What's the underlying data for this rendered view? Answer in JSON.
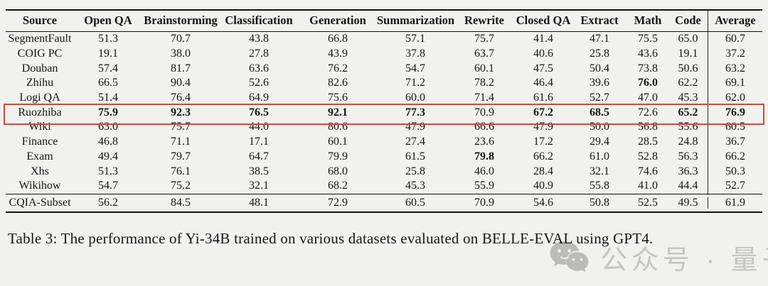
{
  "table": {
    "caption": "Table 3: The performance of Yi-34B trained on various datasets evaluated on BELLE-EVAL using GPT4.",
    "headers": [
      "Source",
      "Open QA",
      "Brainstorming",
      "Classification",
      "Generation",
      "Summarization",
      "Rewrite",
      "Closed QA",
      "Extract",
      "Math",
      "Code",
      "Average"
    ],
    "highlight_color": "#cb4a3d",
    "rows": [
      {
        "source": "SegmentFault",
        "values": [
          "51.3",
          "70.7",
          "43.8",
          "66.8",
          "57.1",
          "75.7",
          "41.4",
          "47.1",
          "75.5",
          "65.0",
          "60.7"
        ],
        "bold": [],
        "highlighted": false
      },
      {
        "source": "COIG PC",
        "values": [
          "19.1",
          "38.0",
          "27.8",
          "43.9",
          "37.8",
          "63.7",
          "40.6",
          "25.8",
          "43.6",
          "19.1",
          "37.2"
        ],
        "bold": [],
        "highlighted": false
      },
      {
        "source": "Douban",
        "values": [
          "57.4",
          "81.7",
          "63.6",
          "76.2",
          "54.7",
          "60.1",
          "47.5",
          "50.4",
          "73.8",
          "50.6",
          "63.2"
        ],
        "bold": [],
        "highlighted": false
      },
      {
        "source": "Zhihu",
        "values": [
          "66.5",
          "90.4",
          "52.6",
          "82.6",
          "71.2",
          "78.2",
          "46.4",
          "39.6",
          "76.0",
          "62.2",
          "69.1"
        ],
        "bold": [
          8
        ],
        "highlighted": false
      },
      {
        "source": "Logi QA",
        "values": [
          "51.4",
          "76.4",
          "64.9",
          "75.6",
          "60.0",
          "71.4",
          "61.6",
          "52.7",
          "47.0",
          "45.3",
          "62.0"
        ],
        "bold": [],
        "highlighted": false
      },
      {
        "source": "Ruozhiba",
        "values": [
          "75.9",
          "92.3",
          "76.5",
          "92.1",
          "77.3",
          "70.9",
          "67.2",
          "68.5",
          "72.6",
          "65.2",
          "76.9"
        ],
        "bold": [
          0,
          1,
          2,
          3,
          4,
          6,
          7,
          9,
          10
        ],
        "highlighted": true
      },
      {
        "source": "Wiki",
        "values": [
          "63.0",
          "75.7",
          "44.0",
          "80.6",
          "47.9",
          "66.6",
          "47.9",
          "50.0",
          "56.8",
          "55.6",
          "60.5"
        ],
        "bold": [],
        "highlighted": false
      },
      {
        "source": "Finance",
        "values": [
          "46.8",
          "71.1",
          "17.1",
          "60.1",
          "27.4",
          "23.6",
          "17.2",
          "29.4",
          "28.5",
          "24.8",
          "36.7"
        ],
        "bold": [],
        "highlighted": false
      },
      {
        "source": "Exam",
        "values": [
          "49.4",
          "79.7",
          "64.7",
          "79.9",
          "61.5",
          "79.8",
          "66.2",
          "61.0",
          "52.8",
          "56.3",
          "66.2"
        ],
        "bold": [
          5
        ],
        "highlighted": false
      },
      {
        "source": "Xhs",
        "values": [
          "51.3",
          "76.1",
          "38.5",
          "68.0",
          "25.8",
          "46.0",
          "28.4",
          "32.1",
          "74.6",
          "36.3",
          "50.3"
        ],
        "bold": [],
        "highlighted": false
      },
      {
        "source": "Wikihow",
        "values": [
          "54.7",
          "75.2",
          "32.1",
          "68.2",
          "45.3",
          "55.9",
          "40.9",
          "55.8",
          "41.0",
          "44.4",
          "52.7"
        ],
        "bold": [],
        "highlighted": false
      }
    ],
    "footer_row": {
      "source": "CQIA-Subset",
      "values": [
        "56.2",
        "84.5",
        "48.1",
        "72.9",
        "60.5",
        "70.9",
        "54.6",
        "50.8",
        "52.5",
        "49.5",
        "61.9"
      ],
      "bold": [],
      "highlighted": false
    }
  },
  "watermark": {
    "icon": "wechat-icon",
    "text": "公众号 · 量子位",
    "icon_color": "#8f8f8f",
    "text_color": "#b9b9b9"
  }
}
